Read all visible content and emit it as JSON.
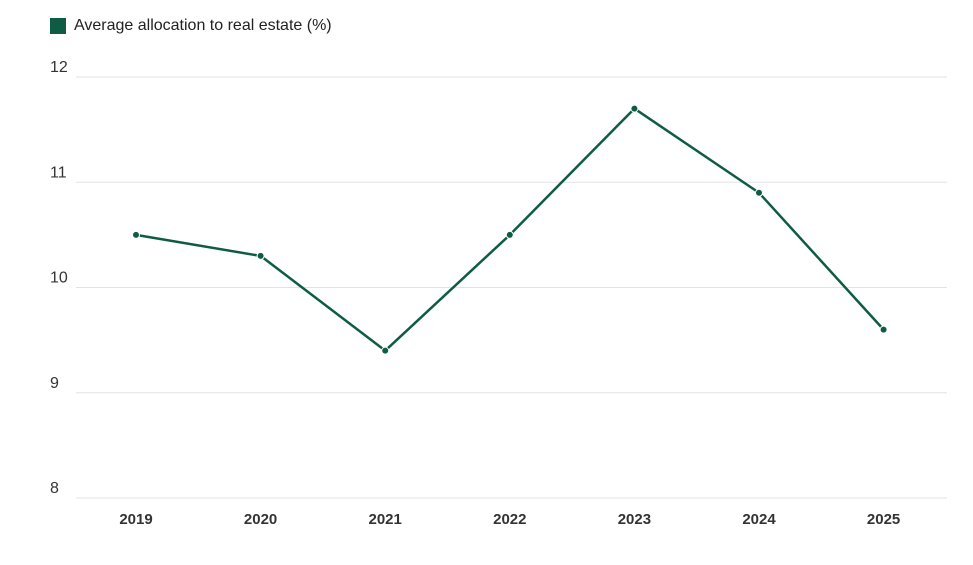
{
  "chart_data": {
    "type": "line",
    "categories": [
      "2019",
      "2020",
      "2021",
      "2022",
      "2023",
      "2024",
      "2025"
    ],
    "series": [
      {
        "name": "Average allocation to real estate (%)",
        "values": [
          10.5,
          10.3,
          9.4,
          10.5,
          11.7,
          10.9,
          9.6
        ],
        "color": "#0d5c43"
      }
    ],
    "title": "",
    "xlabel": "",
    "ylabel": "",
    "ylim": [
      8,
      12
    ],
    "yticks": [
      "8",
      "9",
      "10",
      "11",
      "12"
    ],
    "grid": true,
    "legend_position": "top-left"
  }
}
